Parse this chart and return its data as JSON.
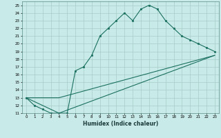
{
  "xlabel": "Humidex (Indice chaleur)",
  "ylabel": "",
  "bg_color": "#c8eae8",
  "line_color": "#1a7060",
  "grid_color": "#a8ccc8",
  "xlim": [
    -0.5,
    23.5
  ],
  "ylim": [
    11,
    25.5
  ],
  "xticks": [
    0,
    1,
    2,
    3,
    4,
    5,
    6,
    7,
    8,
    9,
    10,
    11,
    12,
    13,
    14,
    15,
    16,
    17,
    18,
    19,
    20,
    21,
    22,
    23
  ],
  "yticks": [
    11,
    12,
    13,
    14,
    15,
    16,
    17,
    18,
    19,
    20,
    21,
    22,
    23,
    24,
    25
  ],
  "line1": {
    "x": [
      0,
      1,
      2,
      3,
      4,
      5,
      6,
      7,
      8,
      9,
      10,
      11,
      12,
      13,
      14,
      15,
      16,
      17,
      18,
      19,
      20,
      21,
      22,
      23
    ],
    "y": [
      13,
      12,
      11.5,
      11,
      11,
      11,
      16.5,
      17,
      18.5,
      21,
      22,
      23,
      24,
      23,
      24.5,
      25,
      24.5,
      23,
      22,
      21,
      20.5,
      20,
      19.5,
      19
    ]
  },
  "line2": {
    "x": [
      0,
      4,
      23
    ],
    "y": [
      13,
      13,
      18.5
    ]
  },
  "line3": {
    "x": [
      0,
      4,
      23
    ],
    "y": [
      13,
      11,
      18.5
    ]
  }
}
